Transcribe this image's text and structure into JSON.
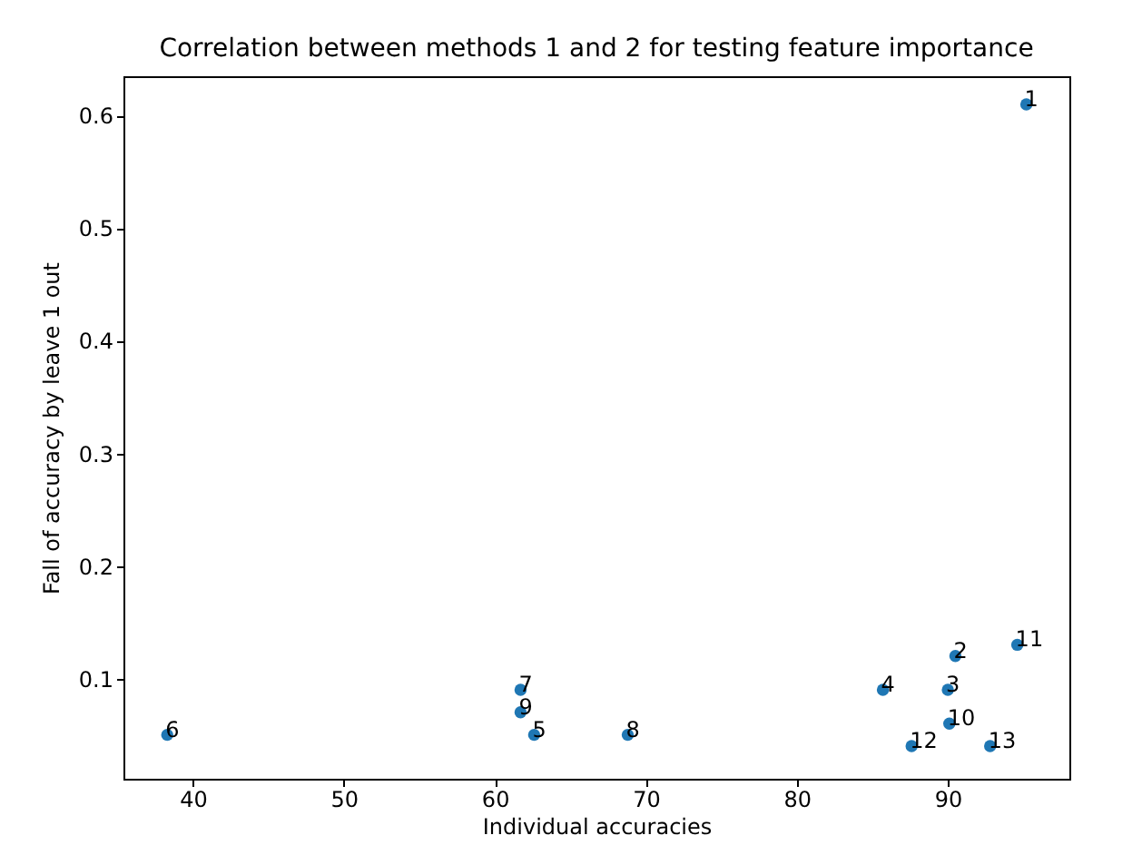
{
  "chart_data": {
    "type": "scatter",
    "title": "Correlation between methods 1 and 2 for testing feature importance",
    "xlabel": "Individual accuracies",
    "ylabel": "Fall of accuracy by leave 1 out",
    "x": [
      95.2,
      90.5,
      90.0,
      85.7,
      62.6,
      38.3,
      61.7,
      68.8,
      61.7,
      90.1,
      94.6,
      87.6,
      92.8
    ],
    "series": [
      {
        "color": "#1f77b4",
        "values": [
          0.61,
          0.12,
          0.09,
          0.09,
          0.05,
          0.05,
          0.09,
          0.05,
          0.07,
          0.06,
          0.13,
          0.04,
          0.04
        ]
      }
    ],
    "annotations": [
      {
        "text": "1",
        "x": 95.2,
        "y": 0.61
      },
      {
        "text": "2",
        "x": 90.5,
        "y": 0.12
      },
      {
        "text": "3",
        "x": 90.0,
        "y": 0.09
      },
      {
        "text": "4",
        "x": 85.7,
        "y": 0.09
      },
      {
        "text": "5",
        "x": 62.6,
        "y": 0.05
      },
      {
        "text": "6",
        "x": 38.3,
        "y": 0.05
      },
      {
        "text": "7",
        "x": 61.7,
        "y": 0.09
      },
      {
        "text": "8",
        "x": 68.8,
        "y": 0.05
      },
      {
        "text": "9",
        "x": 61.7,
        "y": 0.07
      },
      {
        "text": "10",
        "x": 90.1,
        "y": 0.06
      },
      {
        "text": "11",
        "x": 94.6,
        "y": 0.13
      },
      {
        "text": "12",
        "x": 87.6,
        "y": 0.04
      },
      {
        "text": "13",
        "x": 92.8,
        "y": 0.04
      }
    ],
    "xlim": [
      35.4,
      98.05
    ],
    "ylim": [
      0.011,
      0.635
    ],
    "xticks": [
      40,
      50,
      60,
      70,
      80,
      90
    ],
    "yticks": [
      0.1,
      0.2,
      0.3,
      0.4,
      0.5,
      0.6
    ],
    "grid": false,
    "legend": false,
    "marker": "circle"
  }
}
